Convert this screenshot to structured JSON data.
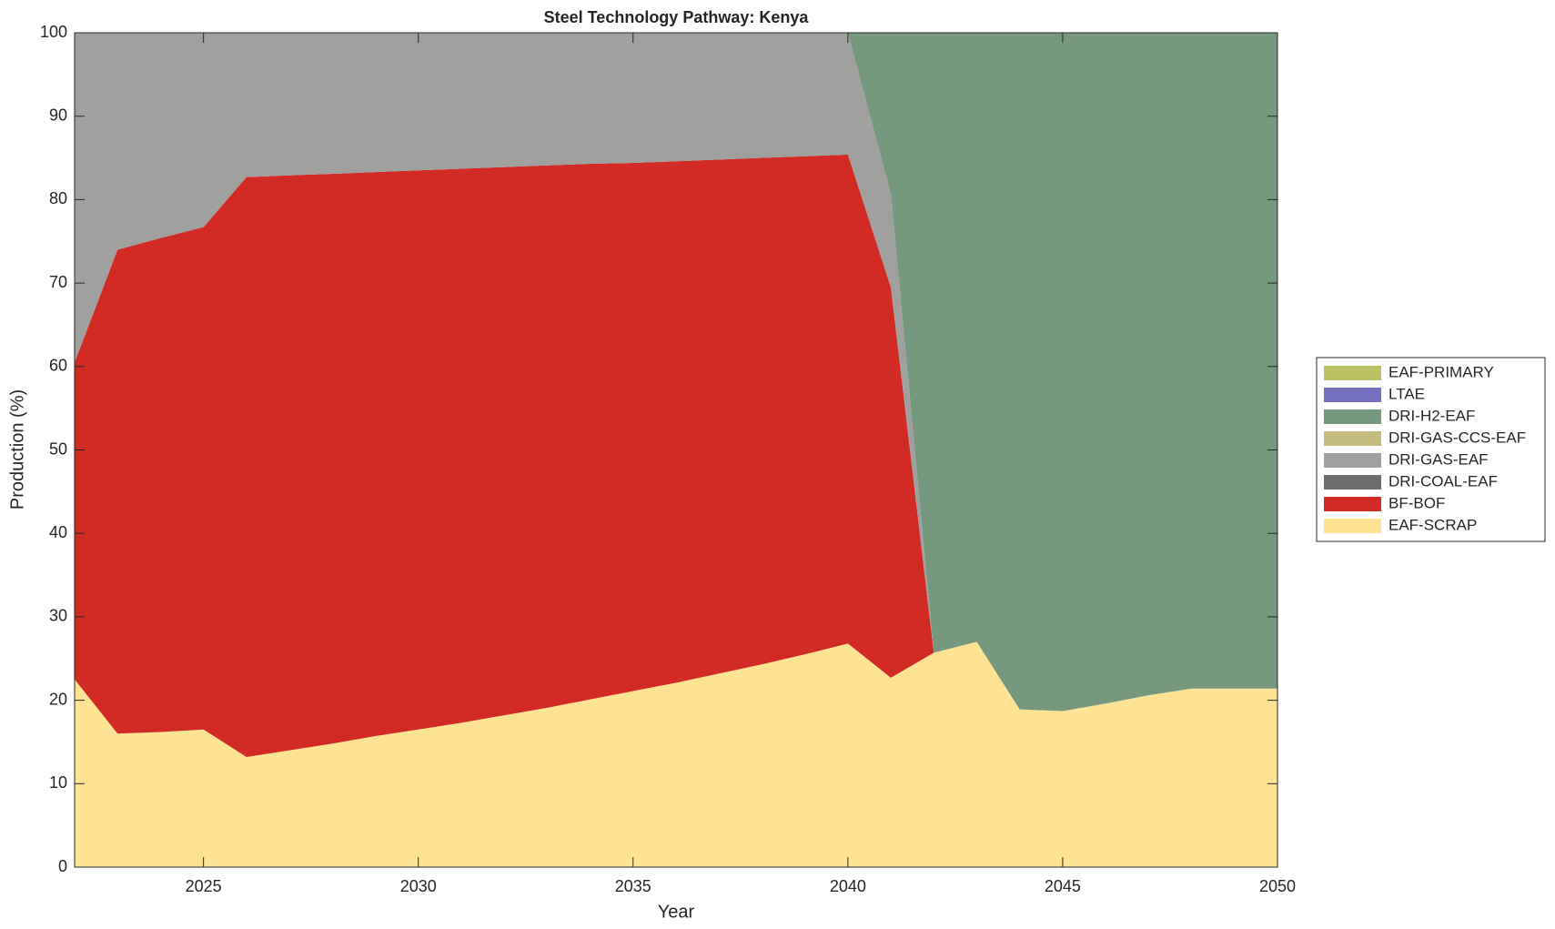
{
  "chart_data": {
    "type": "stacked_area",
    "title": "Steel Technology Pathway: Kenya",
    "xlabel": "Year",
    "ylabel": "Production (%)",
    "x": [
      2022,
      2023,
      2024,
      2025,
      2026,
      2027,
      2028,
      2029,
      2030,
      2031,
      2032,
      2033,
      2034,
      2035,
      2036,
      2037,
      2038,
      2039,
      2040,
      2041,
      2042,
      2043,
      2044,
      2045,
      2046,
      2047,
      2048,
      2049,
      2050
    ],
    "xlim": [
      2022,
      2050
    ],
    "xticks": [
      2025,
      2030,
      2035,
      2040,
      2045,
      2050
    ],
    "ylim": [
      0,
      100
    ],
    "yticks": [
      0,
      10,
      20,
      30,
      40,
      50,
      60,
      70,
      80,
      90,
      100
    ],
    "legend": "right",
    "series": [
      {
        "name": "EAF-SCRAP",
        "color": "#fee394",
        "values": [
          22.5,
          16,
          16.2,
          16.5,
          13.2,
          14,
          14.8,
          15.7,
          16.5,
          17.3,
          18.2,
          19.1,
          20.1,
          21.1,
          22.1,
          23.2,
          24.3,
          25.5,
          26.8,
          22.7,
          25.7,
          27,
          18.9,
          18.7,
          19.6,
          20.6,
          21.4,
          21.4,
          21.4
        ]
      },
      {
        "name": "BF-BOF",
        "color": "#d22b26",
        "values": [
          38,
          58,
          59.2,
          60.2,
          69.5,
          68.9,
          68.3,
          67.6,
          67,
          66.4,
          65.7,
          65,
          64.2,
          63.3,
          62.5,
          61.6,
          60.7,
          59.7,
          58.6,
          46.8,
          0,
          0,
          0,
          0,
          0,
          0,
          0,
          0,
          0
        ]
      },
      {
        "name": "DRI-COAL-EAF",
        "color": "#6d6d6d",
        "values": [
          0,
          0,
          0,
          0,
          0,
          0,
          0,
          0,
          0,
          0,
          0,
          0,
          0,
          0,
          0,
          0,
          0,
          0,
          0,
          0,
          0,
          0,
          0,
          0,
          0,
          0,
          0,
          0,
          0
        ]
      },
      {
        "name": "DRI-GAS-EAF",
        "color": "#a0a09e",
        "values": [
          39.5,
          26,
          24.6,
          23.3,
          17.3,
          17.1,
          16.9,
          16.7,
          16.5,
          16.3,
          16.1,
          15.9,
          15.7,
          15.6,
          15.4,
          15.2,
          15,
          14.8,
          14.6,
          11.2,
          0,
          0,
          0,
          0,
          0,
          0,
          0,
          0,
          0
        ]
      },
      {
        "name": "DRI-GAS-CCS-EAF",
        "color": "#c4bb7f",
        "values": [
          0,
          0,
          0,
          0,
          0,
          0,
          0,
          0,
          0,
          0,
          0,
          0,
          0,
          0,
          0,
          0,
          0,
          0,
          0,
          0,
          0,
          0,
          0,
          0,
          0,
          0,
          0,
          0,
          0
        ]
      },
      {
        "name": "DRI-H2-EAF",
        "color": "#76987e",
        "values": [
          0,
          0,
          0,
          0,
          0,
          0,
          0,
          0,
          0,
          0,
          0,
          0,
          0,
          0,
          0,
          0,
          0,
          0,
          0,
          19.3,
          74.3,
          73,
          81.1,
          81.3,
          80.4,
          79.4,
          78.6,
          78.6,
          78.6
        ]
      },
      {
        "name": "LTAE",
        "color": "#7570c0",
        "values": [
          0,
          0,
          0,
          0,
          0,
          0,
          0,
          0,
          0,
          0,
          0,
          0,
          0,
          0,
          0,
          0,
          0,
          0,
          0,
          0,
          0,
          0,
          0,
          0,
          0,
          0,
          0,
          0,
          0
        ]
      },
      {
        "name": "EAF-PRIMARY",
        "color": "#bcc164",
        "values": [
          0,
          0,
          0,
          0,
          0,
          0,
          0,
          0,
          0,
          0,
          0,
          0,
          0,
          0,
          0,
          0,
          0,
          0,
          0,
          0,
          0,
          0,
          0,
          0,
          0,
          0,
          0,
          0,
          0
        ]
      }
    ]
  }
}
